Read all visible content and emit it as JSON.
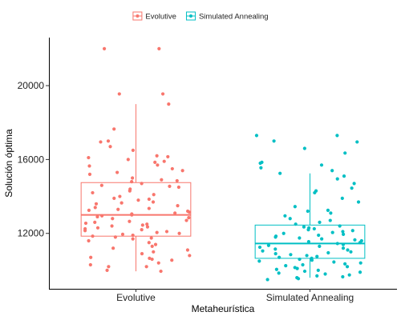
{
  "chart_data": {
    "type": "boxplot",
    "xlabel": "Metaheurística",
    "ylabel": "Solución óptima",
    "ylim": [
      9000,
      22600
    ],
    "yticks": [
      12000,
      16000,
      20000
    ],
    "grid": false,
    "legend_position": "top",
    "categories": [
      "Evolutive",
      "Simulated Annealing"
    ],
    "series": [
      {
        "name": "Evolutive",
        "color": "#F8766D",
        "box": {
          "q1": 11850,
          "median": 13000,
          "q3": 14750,
          "whisker_low": 9950,
          "whisker_high": 19000
        },
        "points": [
          22000,
          22000,
          19550,
          19550,
          19000,
          17650,
          17000,
          16950,
          16700,
          16500,
          16200,
          16150,
          16100,
          16000,
          15900,
          15850,
          15700,
          15650,
          15500,
          15400,
          15300,
          15200,
          15000,
          14900,
          14850,
          14800,
          14700,
          14600,
          14550,
          14500,
          14400,
          14300,
          14200,
          14100,
          14000,
          13900,
          13850,
          13800,
          13700,
          13650,
          13600,
          13500,
          13400,
          13350,
          13300,
          13250,
          13200,
          13150,
          13100,
          13050,
          13000,
          12950,
          12900,
          12850,
          12800,
          12700,
          12650,
          12600,
          12550,
          12500,
          12450,
          12400,
          12350,
          12300,
          12250,
          12200,
          12150,
          12100,
          12050,
          12000,
          11950,
          11900,
          11850,
          11800,
          11750,
          11700,
          11600,
          11500,
          11400,
          11300,
          11200,
          11100,
          11000,
          10900,
          10800,
          10700,
          10650,
          10600,
          10550,
          10400,
          10300,
          10200,
          10200,
          10000,
          9950
        ]
      },
      {
        "name": "Simulated Annealing",
        "color": "#00BFC4",
        "box": {
          "q1": 10650,
          "median": 11450,
          "q3": 12450,
          "whisker_low": 9600,
          "whisker_high": 15250
        },
        "points": [
          17300,
          17300,
          17000,
          16950,
          16600,
          16350,
          15850,
          15800,
          15700,
          15550,
          15400,
          15250,
          15100,
          14950,
          14700,
          14450,
          14300,
          14200,
          13900,
          13700,
          13450,
          13250,
          13200,
          13100,
          12950,
          12800,
          12700,
          12600,
          12500,
          12400,
          12350,
          12300,
          12250,
          12200,
          12150,
          12100,
          12050,
          12000,
          11950,
          11900,
          11850,
          11800,
          11750,
          11700,
          11650,
          11600,
          11550,
          11500,
          11450,
          11400,
          11350,
          11300,
          11250,
          11200,
          11150,
          11100,
          11050,
          11000,
          10950,
          10900,
          10850,
          10800,
          10750,
          10700,
          10650,
          10600,
          10550,
          10500,
          10450,
          10400,
          10350,
          10300,
          10250,
          10200,
          10150,
          10100,
          10050,
          10000,
          9950,
          9900,
          9850,
          9800,
          9750,
          9700,
          9650,
          9600,
          9550,
          9500
        ]
      }
    ]
  }
}
